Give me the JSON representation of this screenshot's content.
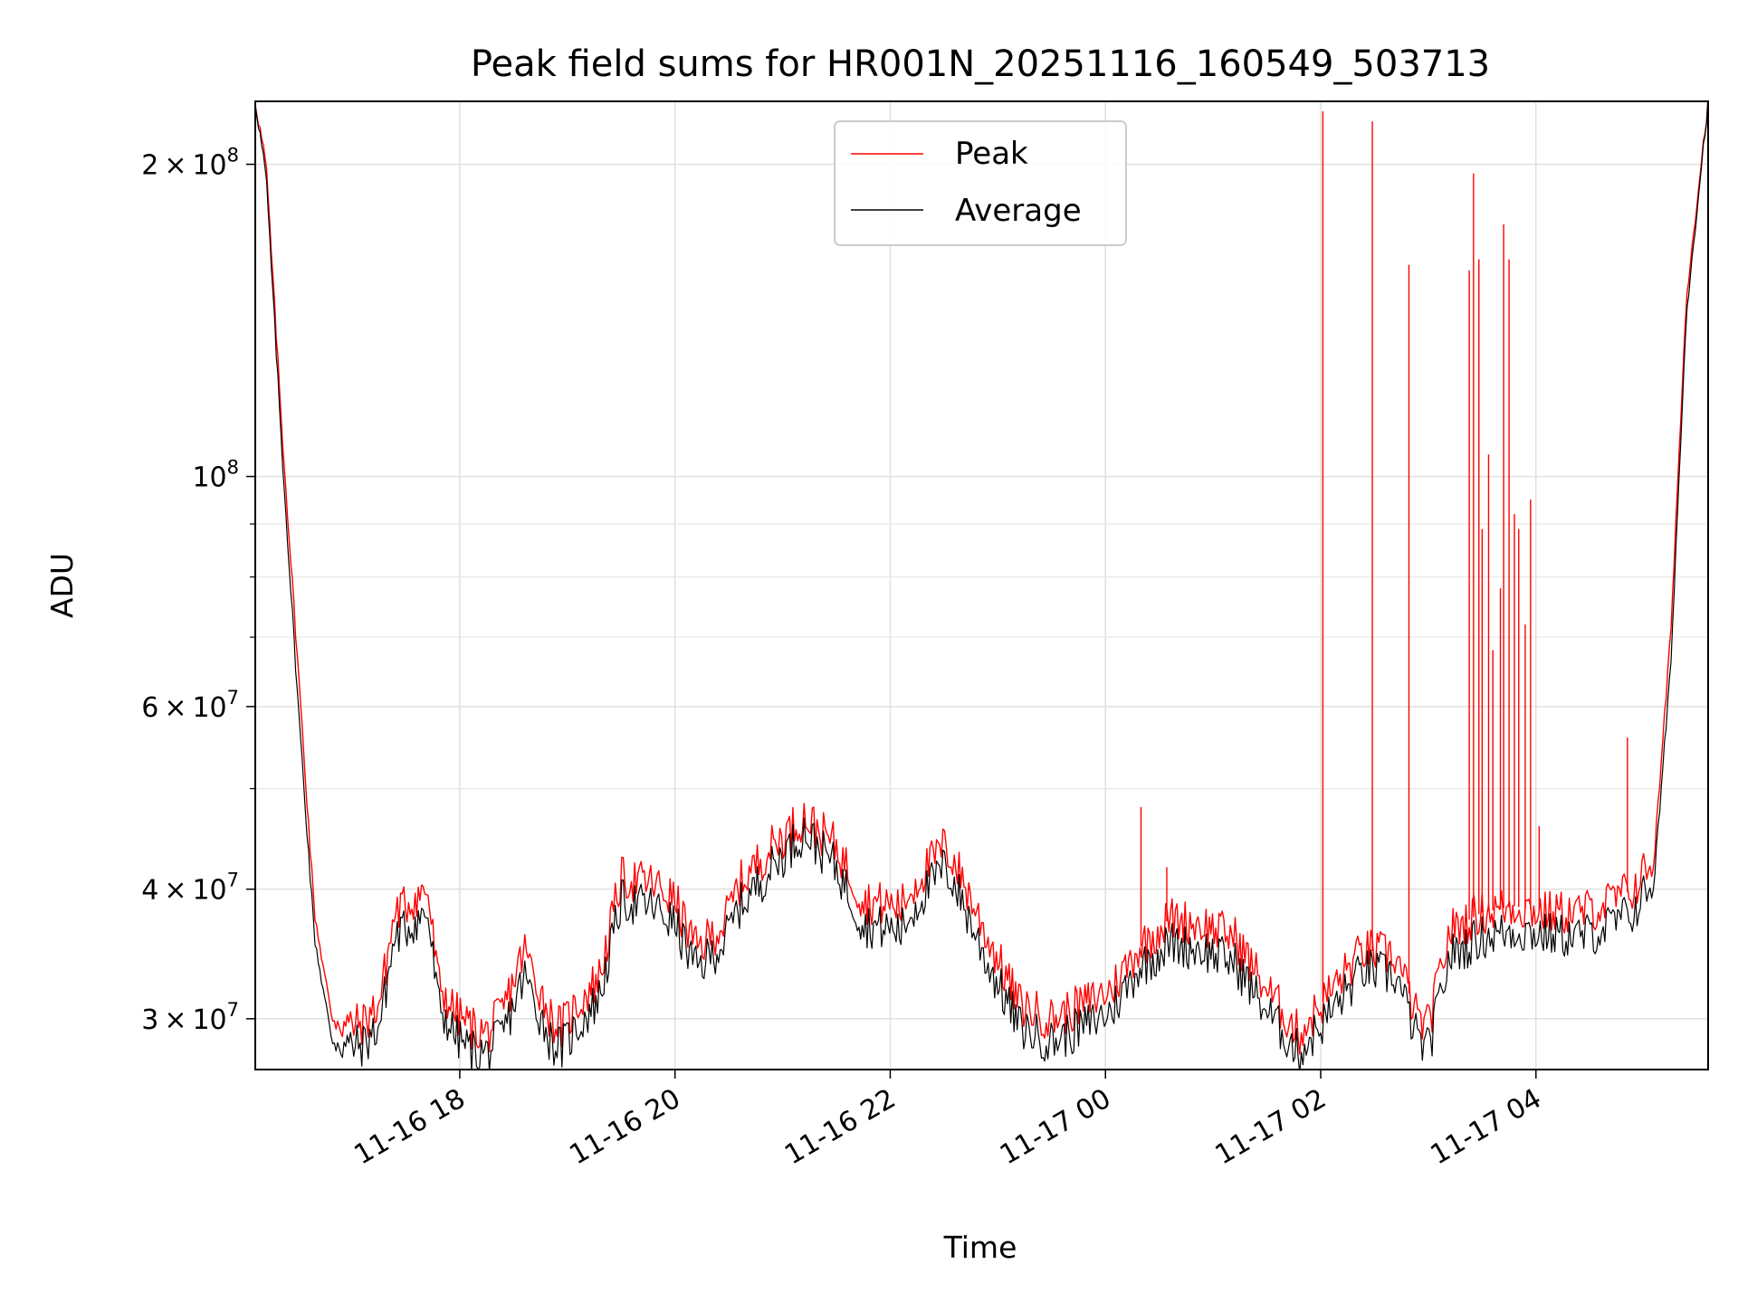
{
  "chart_data": {
    "type": "line",
    "title": "Peak field sums for HR001N_20251116_160549_503713",
    "xlabel": "Time",
    "ylabel": "ADU",
    "yscale": "log",
    "ylim": [
      26800000,
      230000000
    ],
    "xlim_hours": [
      -1.9,
      11.6
    ],
    "grid": true,
    "legend_position": "upper center",
    "x_ticks": [
      {
        "hour": 0,
        "label": "11-16 18"
      },
      {
        "hour": 2,
        "label": "11-16 20"
      },
      {
        "hour": 4,
        "label": "11-16 22"
      },
      {
        "hour": 6,
        "label": "11-17 00"
      },
      {
        "hour": 8,
        "label": "11-17 02"
      },
      {
        "hour": 10,
        "label": "11-17 04"
      }
    ],
    "y_major_ticks": [
      {
        "value": 30000000,
        "mantissa": "3",
        "exponent": "7"
      },
      {
        "value": 40000000,
        "mantissa": "4",
        "exponent": "7"
      },
      {
        "value": 60000000,
        "mantissa": "6",
        "exponent": "7"
      },
      {
        "value": 100000000,
        "mantissa": "",
        "exponent": "8"
      },
      {
        "value": 200000000,
        "mantissa": "2",
        "exponent": "8"
      }
    ],
    "y_minor_ticks": [
      50000000,
      70000000,
      80000000,
      90000000
    ],
    "tick_labels": {
      "times_sign": "×",
      "base": "10",
      "x_0": "11-16 18",
      "x_1": "11-16 20",
      "x_2": "11-16 22",
      "x_3": "11-17 00",
      "x_4": "11-17 02",
      "x_5": "11-17 04"
    },
    "series": [
      {
        "name": "Peak",
        "color": "#ff0000",
        "x_hours": [
          -1.9,
          -1.8,
          -1.65,
          -1.5,
          -1.35,
          -1.2,
          -1.05,
          -0.9,
          -0.75,
          -0.6,
          -0.45,
          -0.3,
          -0.2,
          -0.05,
          0.1,
          0.25,
          0.4,
          0.6,
          0.85,
          0.95,
          1.1,
          1.3,
          1.5,
          1.8,
          2.0,
          2.2,
          2.45,
          2.6,
          2.9,
          3.2,
          3.5,
          3.75,
          4.1,
          4.3,
          4.5,
          4.6,
          4.9,
          5.2,
          5.5,
          5.8,
          6.05,
          6.3,
          6.6,
          6.9,
          7.2,
          7.5,
          7.8,
          8.1,
          8.4,
          8.7,
          8.9,
          9.0,
          9.2,
          9.5,
          9.8,
          10.1,
          10.4,
          10.6,
          10.9,
          11.1,
          11.25,
          11.4,
          11.6
        ],
        "y": [
          230000000,
          200000000,
          110000000,
          65000000,
          38000000,
          30500000,
          29500000,
          29700000,
          31000000,
          38000000,
          39000000,
          40000000,
          32500000,
          30500000,
          29500000,
          29000000,
          30500000,
          35000000,
          30000000,
          29500000,
          31000000,
          33000000,
          41000000,
          40500000,
          39000000,
          35000000,
          37000000,
          40500000,
          44000000,
          47000000,
          44000000,
          39000000,
          38500000,
          41500000,
          44000000,
          42500000,
          36000000,
          31000000,
          30000000,
          31000000,
          32000000,
          35000000,
          37500000,
          37000000,
          36000000,
          32000000,
          29000000,
          32000000,
          35000000,
          34500000,
          30000000,
          29500000,
          36500000,
          38000000,
          38500000,
          38000000,
          38000000,
          38500000,
          40000000,
          43000000,
          70000000,
          150000000,
          230000000
        ],
        "spikes": [
          {
            "x_hours": 6.33,
            "y": 48000000
          },
          {
            "x_hours": 6.57,
            "y": 42000000
          },
          {
            "x_hours": 8.02,
            "y": 225000000
          },
          {
            "x_hours": 8.48,
            "y": 220000000
          },
          {
            "x_hours": 8.82,
            "y": 160000000
          },
          {
            "x_hours": 9.38,
            "y": 158000000
          },
          {
            "x_hours": 9.42,
            "y": 196000000
          },
          {
            "x_hours": 9.47,
            "y": 162000000
          },
          {
            "x_hours": 9.5,
            "y": 89000000
          },
          {
            "x_hours": 9.56,
            "y": 105000000
          },
          {
            "x_hours": 9.6,
            "y": 68000000
          },
          {
            "x_hours": 9.67,
            "y": 78000000
          },
          {
            "x_hours": 9.7,
            "y": 175000000
          },
          {
            "x_hours": 9.75,
            "y": 162000000
          },
          {
            "x_hours": 9.8,
            "y": 92000000
          },
          {
            "x_hours": 9.84,
            "y": 89000000
          },
          {
            "x_hours": 9.9,
            "y": 72000000
          },
          {
            "x_hours": 9.95,
            "y": 95000000
          },
          {
            "x_hours": 10.03,
            "y": 46000000
          },
          {
            "x_hours": 10.85,
            "y": 56000000
          }
        ]
      },
      {
        "name": "Average",
        "color": "#000000",
        "x_hours": [
          -1.9,
          -1.8,
          -1.65,
          -1.5,
          -1.35,
          -1.2,
          -1.05,
          -0.9,
          -0.75,
          -0.6,
          -0.45,
          -0.3,
          -0.2,
          -0.05,
          0.1,
          0.25,
          0.4,
          0.6,
          0.85,
          0.95,
          1.1,
          1.3,
          1.5,
          1.8,
          2.0,
          2.2,
          2.45,
          2.6,
          2.9,
          3.2,
          3.5,
          3.75,
          4.1,
          4.3,
          4.5,
          4.6,
          4.9,
          5.2,
          5.5,
          5.8,
          6.05,
          6.3,
          6.6,
          6.9,
          7.2,
          7.5,
          7.8,
          8.1,
          8.4,
          8.7,
          8.9,
          9.0,
          9.2,
          9.5,
          9.8,
          10.1,
          10.4,
          10.6,
          10.9,
          11.1,
          11.25,
          11.4,
          11.6
        ],
        "y": [
          230000000,
          195000000,
          105000000,
          60000000,
          36000000,
          29000000,
          28200000,
          28300000,
          29500000,
          36000000,
          37000000,
          38000000,
          31000000,
          29000000,
          28000000,
          27800000,
          29000000,
          33000000,
          28500000,
          28200000,
          29500000,
          31500000,
          39000000,
          38500000,
          37000000,
          33500000,
          35500000,
          38500000,
          42000000,
          45500000,
          42000000,
          37000000,
          36500000,
          39500000,
          42000000,
          40500000,
          34000000,
          29500000,
          28500000,
          29500000,
          30500000,
          33500000,
          35500000,
          35000000,
          34000000,
          30500000,
          27800000,
          30500000,
          33500000,
          33000000,
          28700000,
          28000000,
          34500000,
          36000000,
          36500000,
          36200000,
          36000000,
          36500000,
          38000000,
          41000000,
          65000000,
          145000000,
          230000000
        ]
      }
    ]
  }
}
